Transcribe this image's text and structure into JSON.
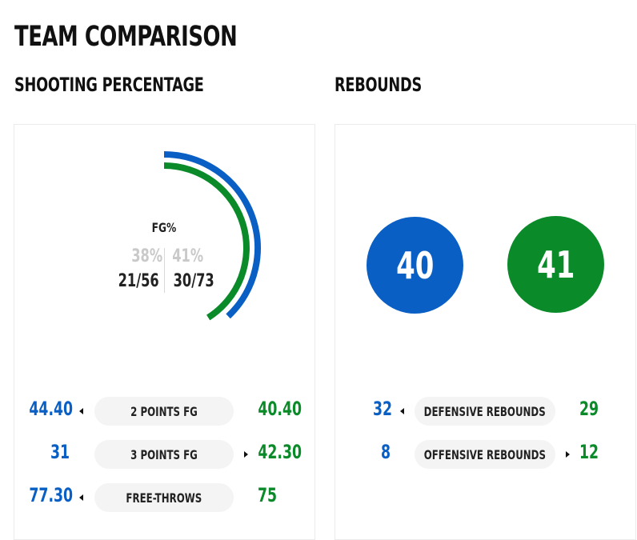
{
  "page": {
    "title": "TEAM COMPARISON"
  },
  "colors": {
    "team_a": "#0a5fc4",
    "team_b": "#0b8a2a",
    "pill_bg": "#f4f4f4"
  },
  "shooting": {
    "heading": "SHOOTING PERCENTAGE",
    "gauge": {
      "label": "FG%",
      "team_a": {
        "pct_text": "38%",
        "made_attempted": "21/56",
        "pct": 38
      },
      "team_b": {
        "pct_text": "41%",
        "made_attempted": "30/73",
        "pct": 41
      }
    },
    "rows": [
      {
        "team_a": "44.40",
        "label": "2 POINTS FG",
        "team_b": "40.40",
        "leader": "team_a"
      },
      {
        "team_a": "31",
        "label": "3 POINTS FG",
        "team_b": "42.30",
        "leader": "team_b"
      },
      {
        "team_a": "77.30",
        "label": "FREE-THROWS",
        "team_b": "75",
        "leader": "team_a"
      }
    ]
  },
  "rebounds": {
    "heading": "REBOUNDS",
    "team_a_total": "40",
    "team_b_total": "41",
    "rows": [
      {
        "team_a": "32",
        "label": "DEFENSIVE REBOUNDS",
        "team_b": "29",
        "leader": "team_a"
      },
      {
        "team_a": "8",
        "label": "OFFENSIVE REBOUNDS",
        "team_b": "12",
        "leader": "team_b"
      }
    ]
  }
}
